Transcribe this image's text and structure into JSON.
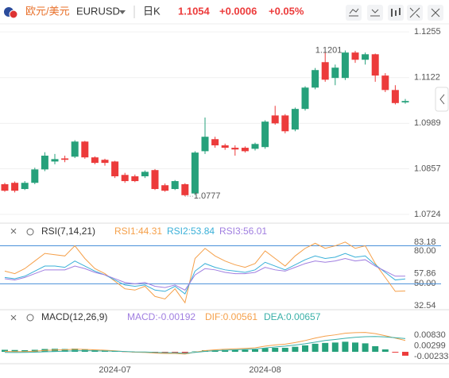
{
  "header": {
    "symbol_name": "欧元/美元",
    "symbol_code": "EURUSD",
    "period": "日K",
    "price": "1.1054",
    "change": "+0.0006",
    "change_pct": "+0.05%"
  },
  "chart_data": [
    {
      "type": "candlestick",
      "categories": [
        null,
        null,
        null,
        null,
        null,
        null,
        null,
        null,
        null,
        null,
        null,
        "2024-07",
        null,
        null,
        null,
        null,
        null,
        null,
        null,
        null,
        null,
        null,
        null,
        null,
        null,
        null,
        "2024-08",
        null,
        null,
        null,
        null,
        null,
        null,
        null,
        null,
        null,
        null,
        null,
        null,
        null,
        null
      ],
      "open": [
        1.0812,
        1.0816,
        1.0798,
        1.0816,
        1.0855,
        1.0878,
        1.0887,
        1.0892,
        1.0936,
        1.089,
        1.0883,
        1.0878,
        1.0839,
        1.0835,
        1.0835,
        1.0853,
        1.0809,
        1.0798,
        1.0812,
        1.0785,
        1.0908,
        1.0943,
        1.0925,
        1.0918,
        1.0918,
        1.0915,
        1.092,
        1.1012,
        1.1012,
        1.0971,
        1.1031,
        1.1093,
        1.1167,
        1.1121,
        1.1121,
        1.1195,
        1.1174,
        1.119,
        1.1128,
        1.1086,
        1.105
      ],
      "high": [
        1.0816,
        1.082,
        1.0821,
        1.086,
        1.0905,
        1.09,
        1.0895,
        1.094,
        1.0938,
        1.0893,
        1.0886,
        1.088,
        1.0845,
        1.084,
        1.0852,
        1.0856,
        1.0814,
        1.0824,
        1.0815,
        1.0908,
        1.1006,
        1.095,
        1.093,
        1.0925,
        1.0922,
        1.0933,
        1.0998,
        1.104,
        1.1016,
        1.1035,
        1.1097,
        1.115,
        1.1195,
        1.116,
        1.1201,
        1.12,
        1.1195,
        1.1192,
        1.1135,
        1.11,
        1.106
      ],
      "low": [
        1.079,
        1.0788,
        1.0795,
        1.0812,
        1.085,
        1.087,
        1.0876,
        1.0888,
        1.0886,
        1.087,
        1.0866,
        1.083,
        1.0816,
        1.0818,
        1.083,
        1.0795,
        1.079,
        1.0795,
        1.0777,
        1.078,
        1.09,
        1.0918,
        1.0912,
        1.0895,
        1.0904,
        1.091,
        1.0915,
        1.0985,
        1.096,
        1.0966,
        1.1026,
        1.1088,
        1.111,
        1.11,
        1.1115,
        1.1165,
        1.116,
        1.111,
        1.108,
        1.1044,
        1.1046
      ],
      "close": [
        1.0793,
        1.0793,
        1.0816,
        1.0855,
        1.0895,
        1.0885,
        1.0883,
        1.0936,
        1.089,
        1.0874,
        1.0874,
        1.0835,
        1.0821,
        1.0821,
        1.0848,
        1.0798,
        1.0793,
        1.0821,
        1.078,
        1.0904,
        1.095,
        1.0925,
        1.0918,
        1.0913,
        1.0908,
        1.0929,
        1.0994,
        1.0989,
        1.0966,
        1.1031,
        1.1093,
        1.1144,
        1.1116,
        1.1151,
        1.1195,
        1.1174,
        1.119,
        1.1128,
        1.1086,
        1.1048,
        1.1054
      ],
      "up_color": "#26a17b",
      "down_color": "#ec3b3b",
      "ylim": [
        1.0701,
        1.1297
      ],
      "yticks": [
        1.1255,
        1.1122,
        1.0989,
        1.0857,
        1.0724
      ],
      "grid": true,
      "annotations": [
        1.1201,
        1.0777
      ]
    },
    {
      "type": "line",
      "title": "RSI(7,14,21)",
      "series": [
        {
          "name": "RSI1:44.31",
          "color": "#f5a04a",
          "values": [
            60,
            58,
            62,
            68,
            74,
            73,
            72,
            80,
            70,
            62,
            58,
            52,
            46,
            45,
            48,
            40,
            38,
            46,
            35,
            70,
            78,
            72,
            68,
            65,
            63,
            66,
            76,
            70,
            64,
            72,
            78,
            82,
            78,
            80,
            83,
            78,
            80,
            66,
            55,
            44,
            44.31
          ]
        },
        {
          "name": "RSI2:53.84",
          "color": "#3ab0d8",
          "values": [
            55,
            54,
            56,
            60,
            64,
            64,
            63,
            68,
            64,
            60,
            57,
            53,
            49,
            48,
            49,
            45,
            44,
            48,
            42,
            60,
            66,
            63,
            61,
            60,
            59,
            61,
            67,
            64,
            61,
            65,
            69,
            72,
            70,
            71,
            74,
            71,
            72,
            65,
            59,
            53,
            53.84
          ]
        },
        {
          "name": "RSI3:56.01",
          "color": "#a07ee0",
          "values": [
            54,
            53,
            55,
            58,
            61,
            61,
            61,
            64,
            62,
            59,
            57,
            54,
            51,
            50,
            51,
            48,
            47,
            49,
            45,
            57,
            62,
            61,
            59,
            58,
            58,
            59,
            63,
            61,
            60,
            63,
            66,
            68,
            67,
            68,
            70,
            68,
            69,
            64,
            60,
            56,
            56.01
          ]
        }
      ],
      "ylim": [
        32,
        86
      ],
      "yticks": [
        {
          "value": 80,
          "label": "80.00"
        },
        83.18,
        57.86,
        {
          "value": 50,
          "label": "50.00"
        },
        32.54
      ],
      "reference_lines": [
        80,
        50
      ],
      "reference_color": "#4a90d9"
    },
    {
      "type": "macd",
      "title": "MACD(12,26,9)",
      "series": [
        {
          "name": "MACD:-0.00192",
          "color": "#a07ee0",
          "values": [
            0.001,
            0.0009,
            0.0008,
            0.001,
            0.0014,
            0.0015,
            0.0014,
            0.0016,
            0.0013,
            0.001,
            0.0008,
            0.0004,
            -0.0001,
            -0.0003,
            -0.0004,
            -0.0006,
            -0.0007,
            -0.0006,
            -0.0008,
            0.0002,
            0.0008,
            0.0009,
            0.001,
            0.001,
            0.001,
            0.0012,
            0.0018,
            0.002,
            0.002,
            0.0025,
            0.0032,
            0.004,
            0.0044,
            0.0046,
            0.005,
            0.0046,
            0.0042,
            0.0028,
            0.0012,
            -0.0004,
            -0.00192
          ]
        },
        {
          "name": "DIF:0.00561",
          "color": "#f5a04a",
          "values": [
            0.0002,
            0.0001,
            0.0001,
            0.0003,
            0.0007,
            0.0009,
            0.001,
            0.0013,
            0.0012,
            0.001,
            0.0008,
            0.0005,
            0.0001,
            -0.0002,
            -0.0003,
            -0.0006,
            -0.0008,
            -0.0008,
            -0.0011,
            -0.0002,
            0.0006,
            0.001,
            0.0013,
            0.0015,
            0.0017,
            0.002,
            0.0028,
            0.0034,
            0.0038,
            0.0046,
            0.0056,
            0.0068,
            0.0078,
            0.0084,
            0.0092,
            0.0095,
            0.0096,
            0.009,
            0.008,
            0.0068,
            0.00561
          ]
        },
        {
          "name": "DEA:0.00657",
          "color": "#3ab0a8",
          "values": [
            -0.0003,
            -0.00035,
            -0.0003,
            -0.0002,
            0,
            0.00015,
            0.0003,
            0.0005,
            0.00055,
            0.0005,
            0.0004,
            0.0003,
            0.00015,
            -5e-05,
            -0.0001,
            -0.0003,
            -0.00045,
            -0.0005,
            -0.0007,
            -0.0003,
            0.0002,
            0.00055,
            0.0008,
            0.001,
            0.0012,
            0.0014,
            0.0019,
            0.0024,
            0.0028,
            0.00335,
            0.004,
            0.0048,
            0.0056,
            0.0061,
            0.0067,
            0.0072,
            0.0075,
            0.0076,
            0.0074,
            0.007,
            0.00657
          ]
        }
      ],
      "up_color": "#26a17b",
      "down_color": "#ec3b3b",
      "ylim": [
        -0.0051,
        0.013
      ],
      "yticks": [
        {
          "value": 0.0083,
          "label": "0.00830"
        },
        0.00299,
        -0.00233
      ]
    }
  ]
}
